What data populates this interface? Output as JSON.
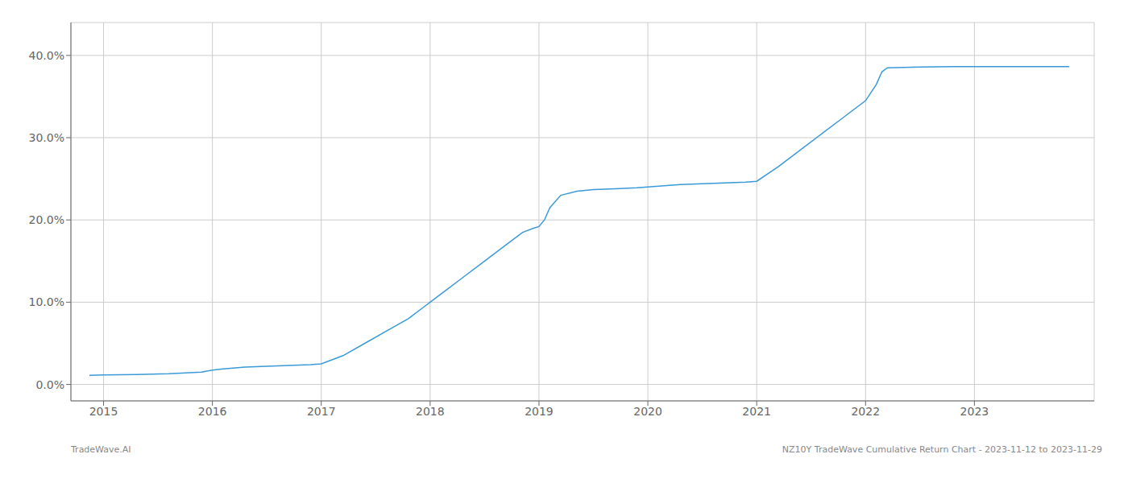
{
  "chart_data": {
    "type": "line",
    "x": [
      2014.87,
      2015.0,
      2015.3,
      2015.6,
      2015.9,
      2016.0,
      2016.1,
      2016.3,
      2016.5,
      2016.7,
      2016.9,
      2017.0,
      2017.2,
      2017.4,
      2017.6,
      2017.8,
      2017.95,
      2018.0,
      2018.15,
      2018.3,
      2018.5,
      2018.7,
      2018.85,
      2018.95,
      2019.0,
      2019.05,
      2019.1,
      2019.2,
      2019.35,
      2019.5,
      2019.7,
      2019.9,
      2020.0,
      2020.1,
      2020.3,
      2020.5,
      2020.7,
      2020.9,
      2021.0,
      2021.2,
      2021.4,
      2021.6,
      2021.8,
      2022.0,
      2022.1,
      2022.15,
      2022.2,
      2022.5,
      2022.8,
      2022.9,
      2023.0,
      2023.3,
      2023.6,
      2023.87
    ],
    "values": [
      1.1,
      1.15,
      1.2,
      1.3,
      1.5,
      1.75,
      1.9,
      2.1,
      2.2,
      2.3,
      2.4,
      2.5,
      3.5,
      5.0,
      6.5,
      8.0,
      9.5,
      10.0,
      11.5,
      13.0,
      15.0,
      17.0,
      18.5,
      19.0,
      19.2,
      20.0,
      21.5,
      23.0,
      23.5,
      23.7,
      23.8,
      23.9,
      24.0,
      24.1,
      24.3,
      24.4,
      24.5,
      24.6,
      24.7,
      26.5,
      28.5,
      30.5,
      32.5,
      34.5,
      36.5,
      38.0,
      38.5,
      38.6,
      38.65,
      38.65,
      38.65,
      38.65,
      38.65,
      38.65
    ],
    "color": "#3a9ad9",
    "xlim": [
      2014.7,
      2024.1
    ],
    "xticks": [
      2015,
      2016,
      2017,
      2018,
      2019,
      2020,
      2021,
      2022,
      2023
    ],
    "ylim": [
      -2,
      44
    ],
    "yticks": [
      {
        "value": 0,
        "label": "0.0%"
      },
      {
        "value": 10,
        "label": "10.0%"
      },
      {
        "value": 20,
        "label": "20.0%"
      },
      {
        "value": 30,
        "label": "30.0%"
      },
      {
        "value": 40,
        "label": "40.0%"
      }
    ],
    "grid": true,
    "annotations": [
      "TradeWave.AI",
      "NZ10Y TradeWave Cumulative Return Chart - 2023-11-12 to 2023-11-29"
    ]
  }
}
